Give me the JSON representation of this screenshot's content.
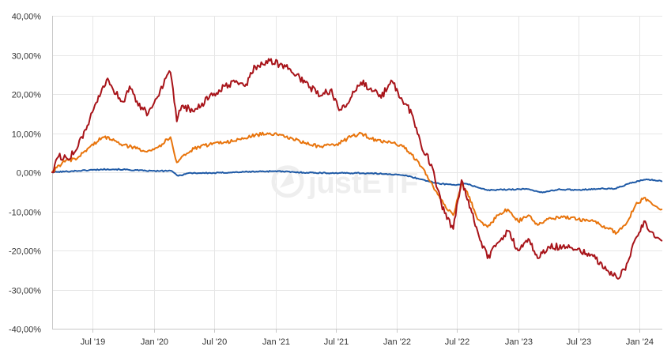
{
  "watermark": {
    "prefix": "just",
    "suffix": "ETF"
  },
  "chart_data": {
    "type": "line",
    "title": "",
    "xlabel": "",
    "ylabel": "",
    "ylim": [
      -40,
      40
    ],
    "y_ticks": [
      40,
      30,
      20,
      10,
      0,
      -10,
      -20,
      -30,
      -40
    ],
    "y_tick_labels": [
      "40,00%",
      "30,00%",
      "20,00%",
      "10,00%",
      "0,00%",
      "-10,00%",
      "-20,00%",
      "-30,00%",
      "-40,00%"
    ],
    "x_range": [
      "2019-03-01",
      "2024-03-10"
    ],
    "x_ticks": [
      "2019-07-01",
      "2020-01-01",
      "2020-07-01",
      "2021-01-01",
      "2021-07-01",
      "2022-01-01",
      "2022-07-01",
      "2023-01-01",
      "2023-07-01",
      "2024-01-01"
    ],
    "x_tick_labels": [
      "Jul '19",
      "Jan '20",
      "Jul '20",
      "Jan '21",
      "Jul '21",
      "Jan '22",
      "Jul '22",
      "Jan '23",
      "Jul '23",
      "Jan '24"
    ],
    "grid": true,
    "series": [
      {
        "color": "#1f5aa6",
        "points": [
          [
            "2019-03-01",
            0.0
          ],
          [
            "2019-05-01",
            0.3
          ],
          [
            "2019-07-01",
            0.6
          ],
          [
            "2019-08-15",
            0.8
          ],
          [
            "2019-10-01",
            0.7
          ],
          [
            "2019-12-01",
            0.4
          ],
          [
            "2020-01-15",
            0.3
          ],
          [
            "2020-02-20",
            0.4
          ],
          [
            "2020-03-15",
            -0.9
          ],
          [
            "2020-04-15",
            -0.2
          ],
          [
            "2020-07-01",
            -0.2
          ],
          [
            "2020-10-01",
            0.1
          ],
          [
            "2021-01-01",
            0.3
          ],
          [
            "2021-03-01",
            0.0
          ],
          [
            "2021-06-01",
            -0.2
          ],
          [
            "2021-09-01",
            -0.2
          ],
          [
            "2021-12-01",
            -0.4
          ],
          [
            "2022-02-01",
            -0.9
          ],
          [
            "2022-03-15",
            -1.8
          ],
          [
            "2022-05-01",
            -2.8
          ],
          [
            "2022-06-15",
            -3.2
          ],
          [
            "2022-08-01",
            -3.0
          ],
          [
            "2022-10-01",
            -4.6
          ],
          [
            "2022-12-01",
            -4.4
          ],
          [
            "2023-02-01",
            -4.3
          ],
          [
            "2023-03-15",
            -5.2
          ],
          [
            "2023-05-01",
            -4.4
          ],
          [
            "2023-07-01",
            -4.5
          ],
          [
            "2023-09-01",
            -4.2
          ],
          [
            "2023-10-20",
            -4.2
          ],
          [
            "2023-12-01",
            -2.9
          ],
          [
            "2024-01-15",
            -1.9
          ],
          [
            "2024-02-15",
            -2.0
          ],
          [
            "2024-03-08",
            -2.3
          ]
        ]
      },
      {
        "color": "#e8740c",
        "points": [
          [
            "2019-03-01",
            0.0
          ],
          [
            "2019-04-01",
            2.5
          ],
          [
            "2019-05-15",
            3.5
          ],
          [
            "2019-06-15",
            6.0
          ],
          [
            "2019-08-01",
            9.0
          ],
          [
            "2019-09-01",
            8.5
          ],
          [
            "2019-10-01",
            7.0
          ],
          [
            "2019-11-15",
            6.0
          ],
          [
            "2019-12-15",
            5.5
          ],
          [
            "2020-01-15",
            6.5
          ],
          [
            "2020-02-20",
            9.0
          ],
          [
            "2020-03-10",
            2.5
          ],
          [
            "2020-03-25",
            4.0
          ],
          [
            "2020-05-01",
            6.0
          ],
          [
            "2020-07-01",
            7.5
          ],
          [
            "2020-09-01",
            8.0
          ],
          [
            "2020-11-01",
            9.5
          ],
          [
            "2020-12-15",
            10.0
          ],
          [
            "2021-02-01",
            9.0
          ],
          [
            "2021-04-01",
            7.5
          ],
          [
            "2021-05-15",
            6.5
          ],
          [
            "2021-07-01",
            7.0
          ],
          [
            "2021-08-15",
            9.0
          ],
          [
            "2021-09-15",
            10.0
          ],
          [
            "2021-11-01",
            8.0
          ],
          [
            "2021-12-15",
            7.5
          ],
          [
            "2022-01-15",
            7.0
          ],
          [
            "2022-02-15",
            4.5
          ],
          [
            "2022-03-15",
            1.5
          ],
          [
            "2022-05-01",
            -5.0
          ],
          [
            "2022-06-01",
            -9.5
          ],
          [
            "2022-06-20",
            -11.0
          ],
          [
            "2022-07-15",
            -3.0
          ],
          [
            "2022-08-01",
            -5.0
          ],
          [
            "2022-09-01",
            -12.0
          ],
          [
            "2022-10-01",
            -14.0
          ],
          [
            "2022-11-01",
            -11.0
          ],
          [
            "2022-12-01",
            -9.5
          ],
          [
            "2023-01-01",
            -12.5
          ],
          [
            "2023-02-01",
            -11.0
          ],
          [
            "2023-03-01",
            -13.5
          ],
          [
            "2023-04-01",
            -12.0
          ],
          [
            "2023-05-15",
            -11.5
          ],
          [
            "2023-07-01",
            -12.0
          ],
          [
            "2023-08-15",
            -12.5
          ],
          [
            "2023-10-01",
            -14.5
          ],
          [
            "2023-10-25",
            -15.5
          ],
          [
            "2023-11-20",
            -13.5
          ],
          [
            "2023-12-20",
            -8.5
          ],
          [
            "2024-01-15",
            -6.5
          ],
          [
            "2024-02-15",
            -8.5
          ],
          [
            "2024-03-08",
            -9.5
          ]
        ]
      },
      {
        "color": "#a8141a",
        "points": [
          [
            "2019-03-01",
            0.0
          ],
          [
            "2019-03-20",
            4.0
          ],
          [
            "2019-04-15",
            3.5
          ],
          [
            "2019-05-15",
            6.0
          ],
          [
            "2019-06-15",
            12.0
          ],
          [
            "2019-07-15",
            18.0
          ],
          [
            "2019-08-15",
            24.0
          ],
          [
            "2019-09-01",
            21.0
          ],
          [
            "2019-10-01",
            18.0
          ],
          [
            "2019-10-20",
            22.0
          ],
          [
            "2019-11-15",
            17.0
          ],
          [
            "2019-12-15",
            15.0
          ],
          [
            "2020-01-20",
            21.0
          ],
          [
            "2020-02-20",
            25.5
          ],
          [
            "2020-03-10",
            13.0
          ],
          [
            "2020-03-25",
            17.0
          ],
          [
            "2020-05-01",
            15.5
          ],
          [
            "2020-06-15",
            19.0
          ],
          [
            "2020-07-15",
            21.0
          ],
          [
            "2020-09-01",
            23.0
          ],
          [
            "2020-10-01",
            22.0
          ],
          [
            "2020-11-01",
            27.0
          ],
          [
            "2020-12-15",
            28.5
          ],
          [
            "2021-02-01",
            27.0
          ],
          [
            "2021-04-01",
            23.0
          ],
          [
            "2021-05-15",
            19.5
          ],
          [
            "2021-06-15",
            21.0
          ],
          [
            "2021-07-15",
            16.0
          ],
          [
            "2021-08-15",
            19.0
          ],
          [
            "2021-09-15",
            23.0
          ],
          [
            "2021-10-15",
            21.5
          ],
          [
            "2021-11-15",
            19.0
          ],
          [
            "2021-12-15",
            23.5
          ],
          [
            "2022-01-15",
            19.0
          ],
          [
            "2022-02-15",
            15.0
          ],
          [
            "2022-03-15",
            7.0
          ],
          [
            "2022-04-15",
            2.0
          ],
          [
            "2022-05-15",
            -8.0
          ],
          [
            "2022-06-01",
            -12.0
          ],
          [
            "2022-06-20",
            -14.5
          ],
          [
            "2022-07-15",
            -2.0
          ],
          [
            "2022-08-01",
            -7.0
          ],
          [
            "2022-09-01",
            -15.0
          ],
          [
            "2022-10-01",
            -22.0
          ],
          [
            "2022-11-01",
            -18.0
          ],
          [
            "2022-12-01",
            -15.0
          ],
          [
            "2023-01-01",
            -20.0
          ],
          [
            "2023-02-01",
            -17.0
          ],
          [
            "2023-03-01",
            -22.0
          ],
          [
            "2023-04-01",
            -19.0
          ],
          [
            "2023-05-15",
            -19.0
          ],
          [
            "2023-07-01",
            -19.5
          ],
          [
            "2023-08-15",
            -21.5
          ],
          [
            "2023-10-01",
            -25.5
          ],
          [
            "2023-10-25",
            -27.0
          ],
          [
            "2023-11-20",
            -25.0
          ],
          [
            "2023-12-20",
            -17.0
          ],
          [
            "2024-01-15",
            -12.5
          ],
          [
            "2024-02-15",
            -16.5
          ],
          [
            "2024-03-08",
            -17.5
          ]
        ]
      }
    ]
  }
}
